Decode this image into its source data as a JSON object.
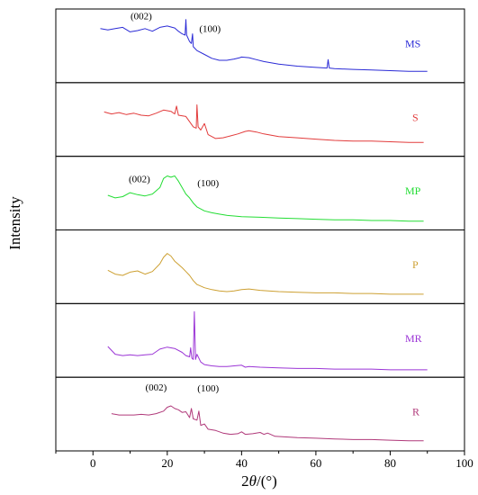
{
  "chart_data": {
    "type": "line",
    "title": "",
    "xlabel": "2θ/(°)",
    "ylabel": "Intensity",
    "xlim": [
      -10,
      100
    ],
    "xticks": [
      0,
      20,
      40,
      60,
      80,
      100
    ],
    "xtick_labels": [
      "0",
      "20",
      "40",
      "60",
      "80",
      "100"
    ],
    "grid": false,
    "legend": "none",
    "series": [
      {
        "name": "MS",
        "color": "#2b2bd6",
        "ylim": [
          0,
          100
        ],
        "x": [
          2,
          4,
          6,
          8,
          10,
          12,
          14,
          16,
          18,
          20,
          22,
          23,
          24,
          24.8,
          25,
          25.2,
          26,
          26.5,
          26.8,
          27,
          28,
          30,
          32,
          34,
          36,
          38,
          39.5,
          40,
          42,
          44,
          46,
          50,
          55,
          60,
          63,
          63.3,
          63.6,
          65,
          70,
          75,
          80,
          85,
          90
        ],
        "y": [
          78,
          76,
          78,
          80,
          73,
          75,
          78,
          74,
          80,
          82,
          79,
          74,
          70,
          68,
          92,
          68,
          58,
          55,
          70,
          50,
          44,
          38,
          32,
          29,
          29,
          31,
          33,
          34,
          33,
          30,
          27,
          23,
          20,
          18,
          17,
          30,
          17,
          16,
          15,
          14,
          13,
          12,
          12
        ],
        "peaks": []
      },
      {
        "name": "S",
        "color": "#e23b3b",
        "ylim": [
          0,
          100
        ],
        "x": [
          3,
          5,
          7,
          9,
          11,
          13,
          15,
          17,
          19,
          21,
          22,
          22.5,
          23,
          25,
          27,
          27.8,
          28,
          28.3,
          29,
          30,
          31,
          33,
          35,
          37,
          39,
          41,
          42,
          44,
          46,
          48,
          50,
          55,
          60,
          65,
          70,
          75,
          80,
          85,
          89
        ],
        "y": [
          63,
          60,
          62,
          59,
          61,
          58,
          57,
          61,
          66,
          64,
          60,
          72,
          58,
          56,
          40,
          38,
          74,
          40,
          35,
          45,
          28,
          22,
          23,
          26,
          29,
          33,
          34,
          32,
          29,
          27,
          25,
          23,
          21,
          19,
          18,
          18,
          17,
          16,
          16
        ],
        "peaks": []
      },
      {
        "name": "MP",
        "color": "#22dd33",
        "ylim": [
          0,
          100
        ],
        "x": [
          4,
          6,
          8,
          10,
          12,
          14,
          16,
          18,
          19,
          20,
          21,
          22,
          23,
          24,
          25,
          26,
          27,
          28,
          30,
          32,
          34,
          36,
          38,
          40,
          45,
          50,
          55,
          60,
          65,
          70,
          75,
          80,
          85,
          89
        ],
        "y": [
          48,
          44,
          46,
          52,
          49,
          47,
          50,
          60,
          74,
          78,
          76,
          78,
          70,
          60,
          50,
          44,
          36,
          30,
          24,
          21,
          19,
          17,
          16,
          15,
          14,
          13,
          12,
          11,
          10,
          10,
          9,
          9,
          8,
          8
        ],
        "peaks": []
      },
      {
        "name": "P",
        "color": "#cda032",
        "ylim": [
          0,
          100
        ],
        "x": [
          4,
          6,
          8,
          10,
          12,
          14,
          16,
          18,
          19,
          20,
          21,
          22,
          23,
          24,
          25,
          26,
          27,
          28,
          30,
          32,
          34,
          36,
          38,
          40,
          42,
          45,
          50,
          55,
          60,
          65,
          70,
          75,
          80,
          85,
          89
        ],
        "y": [
          46,
          40,
          38,
          43,
          45,
          40,
          44,
          56,
          66,
          72,
          68,
          60,
          55,
          50,
          44,
          38,
          30,
          24,
          19,
          16,
          14,
          13,
          14,
          16,
          17,
          15,
          13,
          12,
          11,
          11,
          10,
          10,
          9,
          9,
          9
        ],
        "peaks": []
      },
      {
        "name": "MR",
        "color": "#9b35d6",
        "ylim": [
          0,
          100
        ],
        "x": [
          4,
          6,
          8,
          10,
          12,
          14,
          16,
          18,
          20,
          22,
          24,
          25,
          26,
          26.3,
          26.6,
          27,
          27.3,
          27.6,
          28,
          29,
          30,
          32,
          34,
          36,
          38,
          40,
          41,
          42,
          45,
          50,
          55,
          60,
          65,
          70,
          75,
          80,
          85,
          90
        ],
        "y": [
          42,
          30,
          28,
          29,
          28,
          29,
          30,
          38,
          41,
          39,
          33,
          28,
          26,
          40,
          24,
          22,
          96,
          22,
          30,
          18,
          14,
          12,
          11,
          11,
          12,
          13,
          10,
          11,
          10,
          9,
          8,
          8,
          7,
          7,
          7,
          6,
          6,
          6
        ],
        "peaks": []
      },
      {
        "name": "R",
        "color": "#b0397a",
        "ylim": [
          0,
          100
        ],
        "x": [
          5,
          7,
          9,
          11,
          13,
          15,
          17,
          19,
          20,
          21,
          22,
          23,
          24,
          25,
          26,
          26.5,
          27,
          28,
          28.5,
          29,
          30,
          31,
          33,
          35,
          37,
          39,
          40,
          41,
          43,
          45,
          46,
          47,
          49,
          52,
          55,
          60,
          65,
          70,
          75,
          80,
          85,
          89
        ],
        "y": [
          52,
          50,
          50,
          50,
          51,
          50,
          52,
          56,
          62,
          64,
          60,
          58,
          54,
          55,
          46,
          60,
          44,
          42,
          56,
          34,
          36,
          28,
          26,
          22,
          20,
          21,
          24,
          20,
          21,
          23,
          20,
          22,
          17,
          16,
          15,
          14,
          13,
          12,
          12,
          11,
          10,
          10
        ],
        "peaks": []
      }
    ],
    "annotations": [
      {
        "panel": 0,
        "text": "(002)",
        "x": 13,
        "y": 92
      },
      {
        "panel": 0,
        "text": "(100)",
        "x": 31.5,
        "y": 73
      },
      {
        "panel": 2,
        "text": "(002)",
        "x": 12.5,
        "y": 68
      },
      {
        "panel": 2,
        "text": "(100)",
        "x": 31,
        "y": 62
      },
      {
        "panel": 5,
        "text": "(002)",
        "x": 17,
        "y": 88
      },
      {
        "panel": 5,
        "text": "(100)",
        "x": 31,
        "y": 86
      }
    ]
  }
}
